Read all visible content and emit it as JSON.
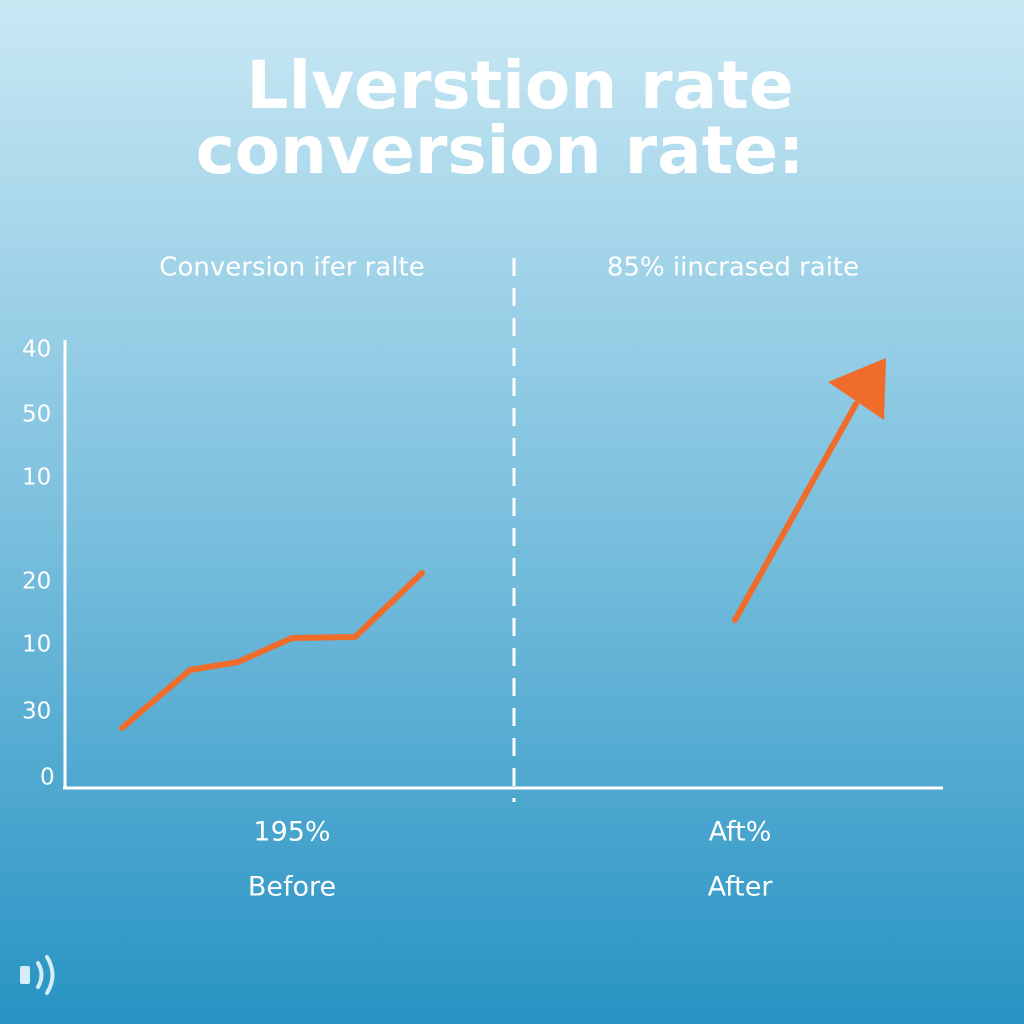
{
  "header": {
    "title_lines": [
      "Llverstion rate",
      "conversion rate:"
    ]
  },
  "panels": [
    {
      "caption": "Conversion ifer ralte",
      "value_label": "195%",
      "label": "Before"
    },
    {
      "caption": "85% iincrased raite",
      "value_label": "Aft%",
      "label": "After"
    }
  ],
  "y_axis_labels": [
    "40",
    "50",
    "10",
    "20",
    "10",
    "30",
    "0"
  ]
}
